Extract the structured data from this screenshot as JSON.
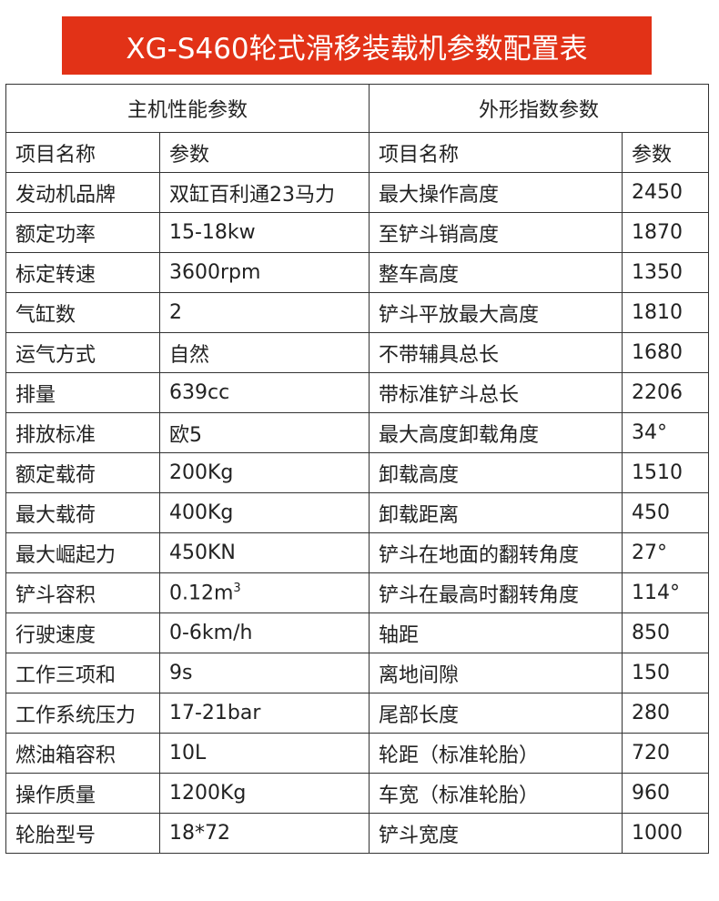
{
  "title": "XG-S460轮式滑移装载机参数配置表",
  "sections": [
    "主机性能参数",
    "外形指数参数"
  ],
  "headers": [
    "项目名称",
    "参数",
    "项目名称",
    "参数"
  ],
  "rows": [
    [
      "发动机品牌",
      "双缸百利通23马力",
      "最大操作高度",
      "2450"
    ],
    [
      "额定功率",
      "15-18kw",
      "至铲斗销高度",
      "1870"
    ],
    [
      "标定转速",
      "3600rpm",
      "整车高度",
      "1350"
    ],
    [
      "气缸数",
      "2",
      "铲斗平放最大高度",
      "1810"
    ],
    [
      "运气方式",
      "自然",
      "不带辅具总长",
      "1680"
    ],
    [
      "排量",
      "639cc",
      "带标准铲斗总长",
      "2206"
    ],
    [
      "排放标准",
      "欧5",
      "最大高度卸载角度",
      "34°"
    ],
    [
      "额定载荷",
      "200Kg",
      "卸载高度",
      "1510"
    ],
    [
      "最大载荷",
      "400Kg",
      "卸载距离",
      "450"
    ],
    [
      "最大崛起力",
      "450KN",
      "铲斗在地面的翻转角度",
      "27°"
    ],
    [
      "铲斗容积",
      "0.12m",
      "铲斗在最高时翻转角度",
      "114°"
    ],
    [
      "行驶速度",
      "0-6km/h",
      "轴距",
      "850"
    ],
    [
      "工作三项和",
      "9s",
      "离地间隙",
      "150"
    ],
    [
      "工作系统压力",
      "17-21bar",
      "尾部长度",
      "280"
    ],
    [
      "燃油箱容积",
      "10L",
      "轮距（标准轮胎）",
      "720"
    ],
    [
      "操作质量",
      "1200Kg",
      "车宽（标准轮胎）",
      "960"
    ],
    [
      "轮胎型号",
      "18*72",
      "铲斗宽度",
      "1000"
    ]
  ],
  "volume_unit_exponent": "3",
  "colors": {
    "title_bg": "#e23217",
    "title_text": "#ffffff",
    "border": "#333333"
  }
}
